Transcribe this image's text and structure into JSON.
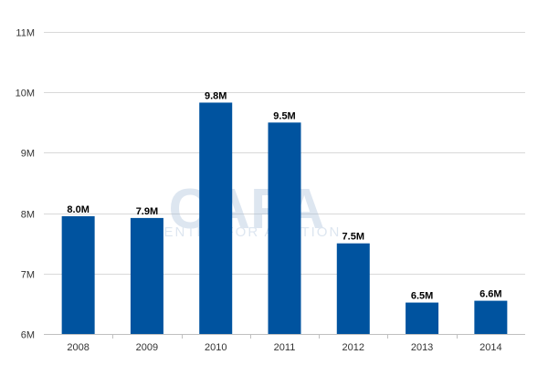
{
  "chart_data": {
    "type": "bar",
    "title": "",
    "xlabel": "",
    "ylabel": "",
    "categories": [
      "2008",
      "2009",
      "2010",
      "2011",
      "2012",
      "2013",
      "2014"
    ],
    "values": [
      7.95,
      7.92,
      9.83,
      9.5,
      7.5,
      6.52,
      6.55
    ],
    "data_labels": [
      "8.0M",
      "7.9M",
      "9.8M",
      "9.5M",
      "7.5M",
      "6.5M",
      "6.6M"
    ],
    "ylim": [
      6,
      11
    ],
    "yticks": [
      6,
      7,
      8,
      9,
      10,
      11
    ],
    "ytick_labels": [
      "6M",
      "7M",
      "8M",
      "9M",
      "10M",
      "11M"
    ],
    "grid": true,
    "legend": "none",
    "bar_color": "#00539f",
    "grid_color": "#d9d9d9"
  },
  "watermark": {
    "main": "CAPA",
    "sub": "CENTRE FOR AVIATION"
  }
}
